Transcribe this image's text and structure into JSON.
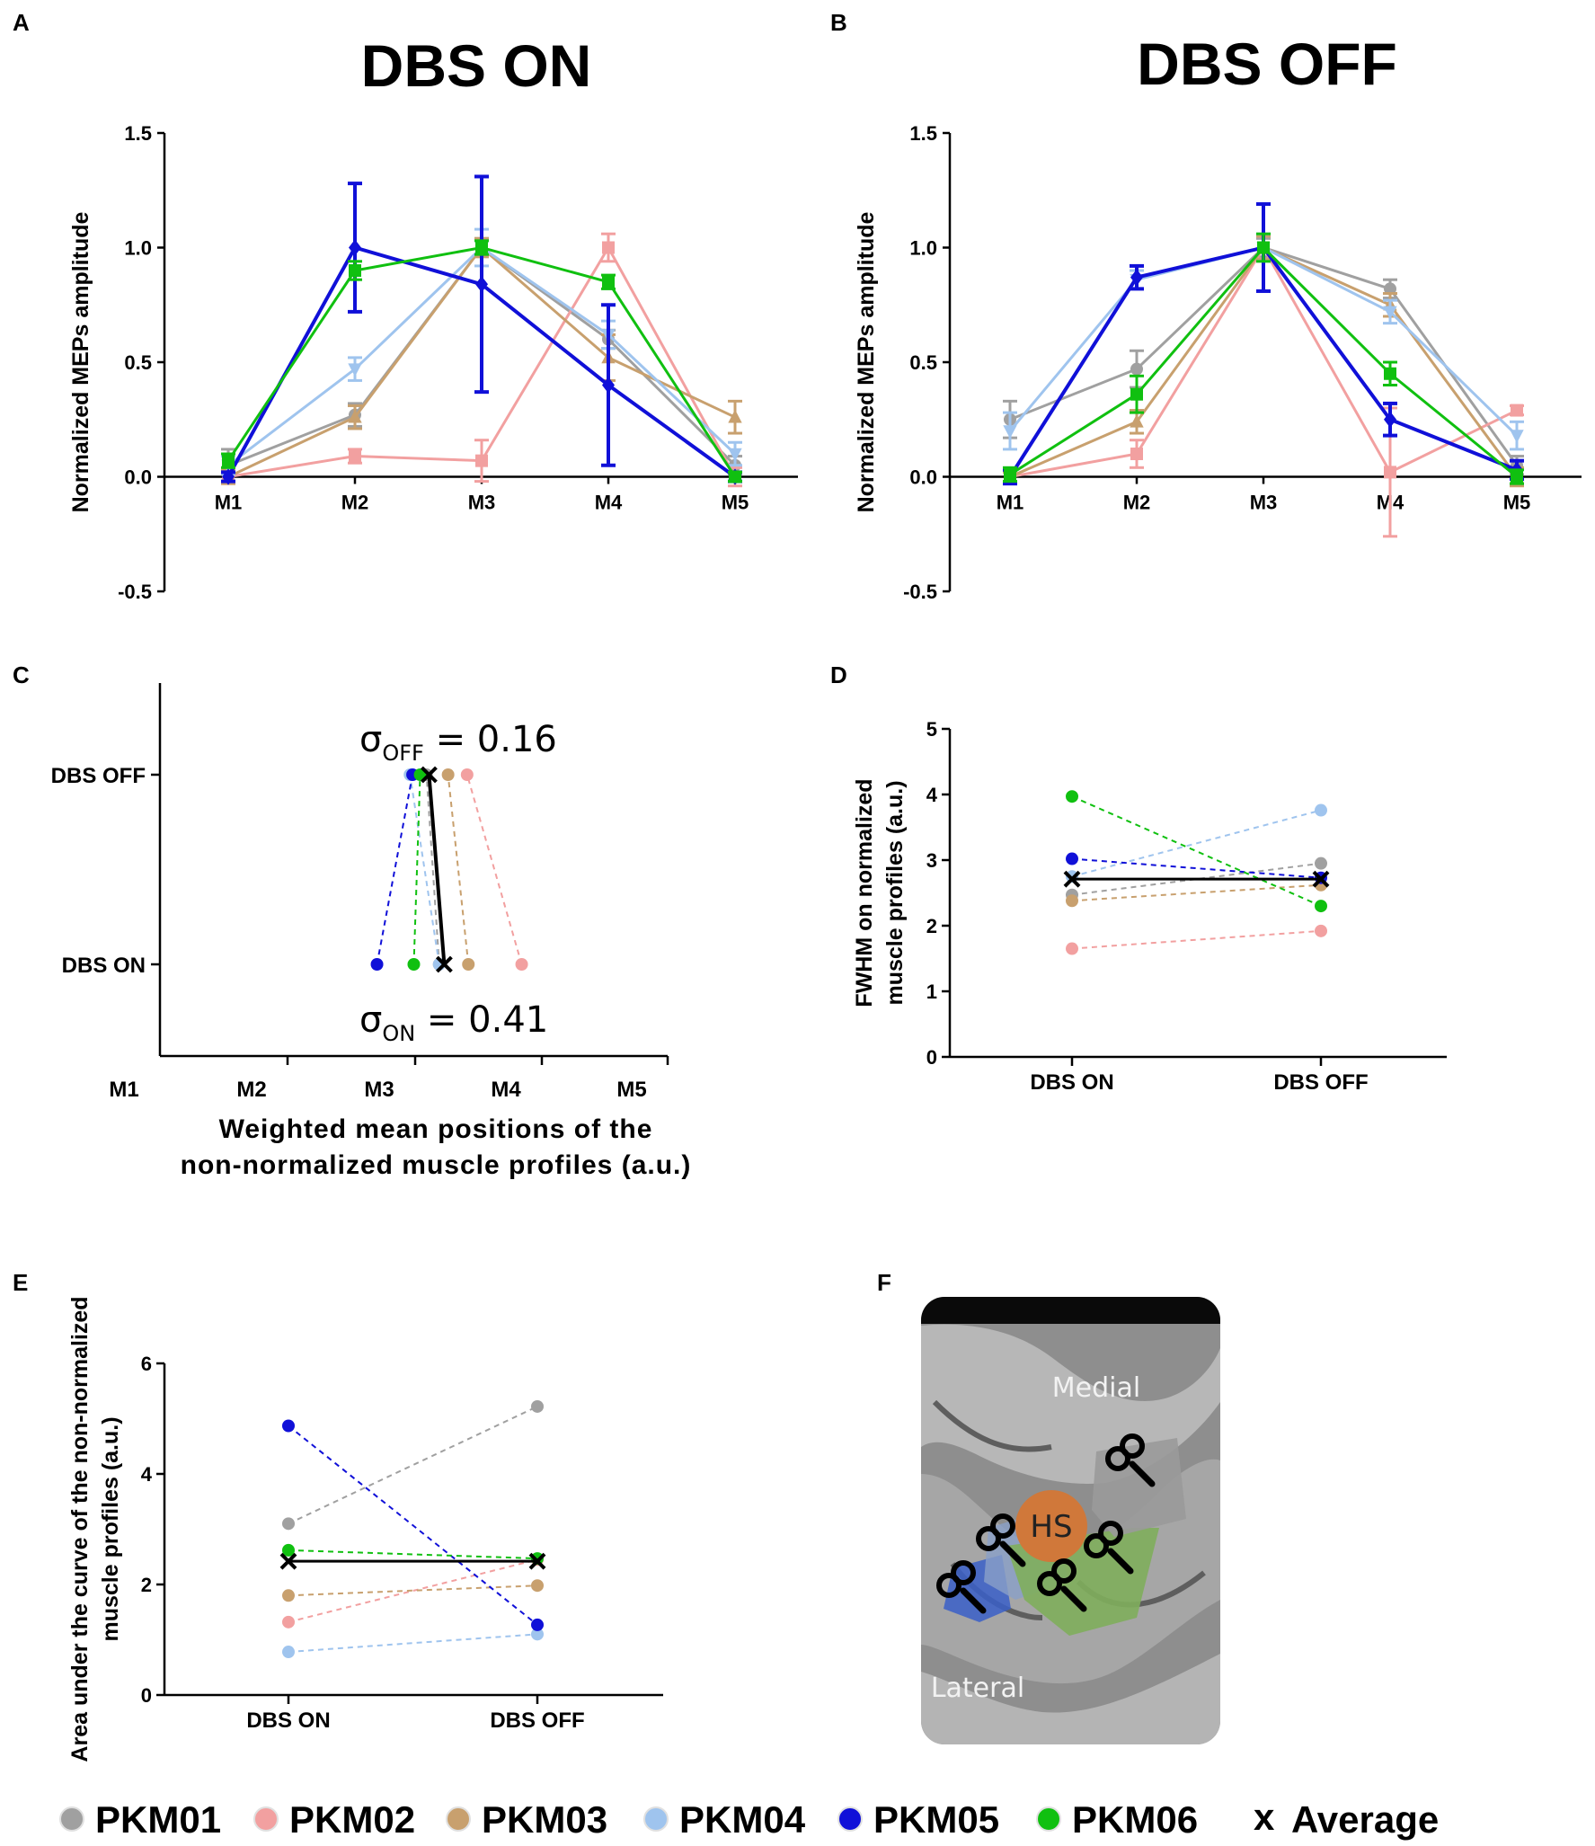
{
  "panels": {
    "A": {
      "label": "A",
      "title": "DBS ON"
    },
    "B": {
      "label": "B",
      "title": "DBS OFF"
    },
    "C": {
      "label": "C",
      "xlabel_line1": "Weighted mean positions of the",
      "xlabel_line2": "non-normalized muscle profiles (a.u.)",
      "sigma_off_prefix": "σ",
      "sigma_off_sub": "OFF",
      "sigma_off_value": " = 0.16",
      "sigma_on_prefix": "σ",
      "sigma_on_sub": "ON",
      "sigma_on_value": " = 0.41"
    },
    "D": {
      "label": "D"
    },
    "E": {
      "label": "E"
    },
    "F": {
      "label": "F",
      "medial": "Medial",
      "lateral": "Lateral",
      "hs": "HS"
    }
  },
  "legend": {
    "items": [
      {
        "name": "PKM01",
        "color": "#a0a0a0"
      },
      {
        "name": "PKM02",
        "color": "#f2a0a0"
      },
      {
        "name": "PKM03",
        "color": "#c8a06e"
      },
      {
        "name": "PKM04",
        "color": "#9fc4ee"
      },
      {
        "name": "PKM05",
        "color": "#1010d8"
      },
      {
        "name": "PKM06",
        "color": "#10c010"
      }
    ],
    "average_marker": "x",
    "average_label": "Average"
  },
  "chart_data": [
    {
      "id": "A",
      "type": "line",
      "title": "DBS ON",
      "ylabel": "Normalized MEPs amplitude",
      "xlabel": "",
      "categories": [
        "M1",
        "M2",
        "M3",
        "M4",
        "M5"
      ],
      "ylim": [
        -0.5,
        1.5
      ],
      "yticks": [
        -0.5,
        0.0,
        0.5,
        1.0,
        1.5
      ],
      "ytick_labels": [
        "-0.5",
        "0.0",
        "0.5",
        "1.0",
        "1.5"
      ],
      "series": [
        {
          "name": "PKM01",
          "color": "#a0a0a0",
          "marker": "circle",
          "values": [
            0.05,
            0.27,
            1.0,
            0.6,
            0.05
          ],
          "errors": [
            0.07,
            0.05,
            0.04,
            0.04,
            0.04
          ]
        },
        {
          "name": "PKM02",
          "color": "#f2a0a0",
          "marker": "square",
          "values": [
            0.0,
            0.09,
            0.07,
            1.0,
            0.0
          ],
          "errors": [
            0.03,
            0.03,
            0.09,
            0.06,
            0.04
          ]
        },
        {
          "name": "PKM03",
          "color": "#c8a06e",
          "marker": "triangle",
          "values": [
            0.0,
            0.26,
            1.0,
            0.52,
            0.26
          ],
          "errors": [
            0.03,
            0.05,
            0.04,
            0.1,
            0.07
          ]
        },
        {
          "name": "PKM04",
          "color": "#9fc4ee",
          "marker": "triangle-down",
          "values": [
            0.05,
            0.47,
            1.0,
            0.62,
            0.1
          ],
          "errors": [
            0.04,
            0.05,
            0.08,
            0.06,
            0.05
          ]
        },
        {
          "name": "PKM05",
          "color": "#1010d8",
          "marker": "diamond",
          "values": [
            0.0,
            1.0,
            0.84,
            0.4,
            0.0
          ],
          "errors": [
            0.02,
            0.28,
            0.47,
            0.35,
            0.02
          ]
        },
        {
          "name": "PKM06",
          "color": "#10c010",
          "marker": "square",
          "values": [
            0.07,
            0.9,
            1.0,
            0.85,
            0.0
          ],
          "errors": [
            0.03,
            0.04,
            0.03,
            0.03,
            0.02
          ]
        }
      ]
    },
    {
      "id": "B",
      "type": "line",
      "title": "DBS OFF",
      "ylabel": "Normalized MEPs amplitude",
      "xlabel": "",
      "categories": [
        "M1",
        "M2",
        "M3",
        "M4",
        "M5"
      ],
      "ylim": [
        -0.5,
        1.5
      ],
      "yticks": [
        -0.5,
        0.0,
        0.5,
        1.0,
        1.5
      ],
      "ytick_labels": [
        "-0.5",
        "0.0",
        "0.5",
        "1.0",
        "1.5"
      ],
      "series": [
        {
          "name": "PKM01",
          "color": "#a0a0a0",
          "marker": "circle",
          "values": [
            0.25,
            0.47,
            1.0,
            0.82,
            0.05
          ],
          "errors": [
            0.08,
            0.08,
            0.04,
            0.04,
            0.04
          ]
        },
        {
          "name": "PKM02",
          "color": "#f2a0a0",
          "marker": "square",
          "values": [
            0.0,
            0.1,
            1.0,
            0.02,
            0.29
          ],
          "errors": [
            0.02,
            0.06,
            0.05,
            0.28,
            0.02
          ]
        },
        {
          "name": "PKM03",
          "color": "#c8a06e",
          "marker": "triangle",
          "values": [
            0.0,
            0.24,
            1.0,
            0.75,
            0.0
          ],
          "errors": [
            0.02,
            0.05,
            0.05,
            0.05,
            0.04
          ]
        },
        {
          "name": "PKM04",
          "color": "#9fc4ee",
          "marker": "triangle-down",
          "values": [
            0.2,
            0.86,
            1.0,
            0.72,
            0.18
          ],
          "errors": [
            0.08,
            0.04,
            0.06,
            0.05,
            0.06
          ]
        },
        {
          "name": "PKM05",
          "color": "#1010d8",
          "marker": "diamond",
          "values": [
            0.0,
            0.87,
            1.0,
            0.25,
            0.03
          ],
          "errors": [
            0.03,
            0.05,
            0.19,
            0.07,
            0.04
          ]
        },
        {
          "name": "PKM06",
          "color": "#10c010",
          "marker": "square",
          "values": [
            0.01,
            0.36,
            1.0,
            0.45,
            0.0
          ],
          "errors": [
            0.03,
            0.08,
            0.06,
            0.05,
            0.03
          ]
        }
      ]
    },
    {
      "id": "C",
      "type": "scatter",
      "xlabel": "Weighted mean positions of the non-normalized muscle profiles (a.u.)",
      "categories_x": [
        "M1",
        "M2",
        "M3",
        "M4",
        "M5"
      ],
      "xlim": [
        1,
        5
      ],
      "categories_y": [
        "DBS ON",
        "DBS OFF"
      ],
      "annotations": [
        "σOFF = 0.16",
        "σON = 0.41"
      ],
      "series": [
        {
          "name": "PKM01",
          "color": "#a0a0a0",
          "on": 3.2,
          "off": 3.1
        },
        {
          "name": "PKM02",
          "color": "#f2a0a0",
          "on": 3.85,
          "off": 3.42
        },
        {
          "name": "PKM03",
          "color": "#c8a06e",
          "on": 3.43,
          "off": 3.27
        },
        {
          "name": "PKM04",
          "color": "#9fc4ee",
          "on": 3.2,
          "off": 2.97
        },
        {
          "name": "PKM05",
          "color": "#1010d8",
          "on": 2.71,
          "off": 2.99
        },
        {
          "name": "PKM06",
          "color": "#10c010",
          "on": 3.0,
          "off": 3.05
        },
        {
          "name": "Average",
          "color": "#000000",
          "on": 3.24,
          "off": 3.12
        }
      ]
    },
    {
      "id": "D",
      "type": "scatter",
      "ylabel": "FWHM on normalized muscle profiles (a.u.)",
      "categories": [
        "DBS ON",
        "DBS OFF"
      ],
      "ylim": [
        0,
        5
      ],
      "yticks": [
        0,
        1,
        2,
        3,
        4,
        5
      ],
      "series": [
        {
          "name": "PKM01",
          "color": "#a0a0a0",
          "values": [
            2.47,
            2.95
          ]
        },
        {
          "name": "PKM02",
          "color": "#f2a0a0",
          "values": [
            1.65,
            1.92
          ]
        },
        {
          "name": "PKM03",
          "color": "#c8a06e",
          "values": [
            2.38,
            2.62
          ]
        },
        {
          "name": "PKM04",
          "color": "#9fc4ee",
          "values": [
            2.75,
            3.76
          ]
        },
        {
          "name": "PKM05",
          "color": "#1010d8",
          "values": [
            3.02,
            2.73
          ]
        },
        {
          "name": "PKM06",
          "color": "#10c010",
          "values": [
            3.97,
            2.3
          ]
        },
        {
          "name": "Average",
          "color": "#000000",
          "values": [
            2.71,
            2.71
          ]
        }
      ]
    },
    {
      "id": "E",
      "type": "scatter",
      "ylabel": "Area under the curve of the non-normalized muscle profiles (a.u.)",
      "categories": [
        "DBS ON",
        "DBS OFF"
      ],
      "ylim": [
        0,
        6
      ],
      "yticks": [
        0,
        2,
        4,
        6
      ],
      "series": [
        {
          "name": "PKM01",
          "color": "#a0a0a0",
          "values": [
            3.1,
            5.22
          ]
        },
        {
          "name": "PKM02",
          "color": "#f2a0a0",
          "values": [
            1.32,
            2.45
          ]
        },
        {
          "name": "PKM03",
          "color": "#c8a06e",
          "values": [
            1.8,
            1.98
          ]
        },
        {
          "name": "PKM04",
          "color": "#9fc4ee",
          "values": [
            0.78,
            1.1
          ]
        },
        {
          "name": "PKM05",
          "color": "#1010d8",
          "values": [
            4.87,
            1.27
          ]
        },
        {
          "name": "PKM06",
          "color": "#10c010",
          "values": [
            2.62,
            2.47
          ]
        },
        {
          "name": "Average",
          "color": "#000000",
          "values": [
            2.42,
            2.42
          ]
        }
      ]
    }
  ]
}
